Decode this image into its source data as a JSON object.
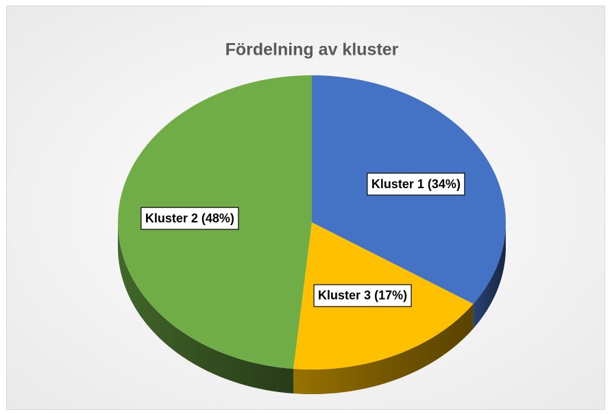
{
  "chart_data": {
    "type": "pie",
    "title": "Fördelning av kluster",
    "categories": [
      "Kluster 1",
      "Kluster 3",
      "Kluster 2"
    ],
    "values": [
      34,
      17,
      48
    ],
    "value_labels": [
      "Kluster 1 (34%)",
      "Kluster 3 (17%)",
      "Kluster 2 (48%)"
    ],
    "colors": [
      "#4472c4",
      "#ffc000",
      "#70ad47"
    ]
  }
}
